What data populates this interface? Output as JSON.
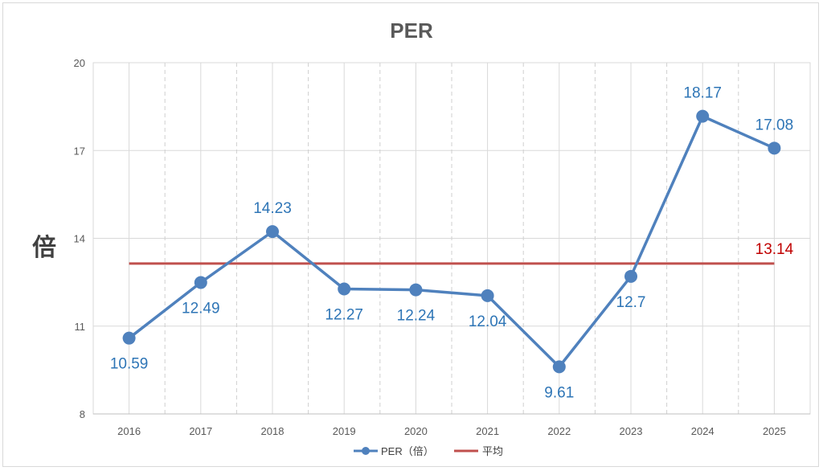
{
  "chart_data": {
    "type": "line",
    "title": "PER",
    "ylabel": "倍",
    "xlabel": "",
    "categories": [
      "2016",
      "2017",
      "2018",
      "2019",
      "2020",
      "2021",
      "2022",
      "2023",
      "2024",
      "2025"
    ],
    "ylim": [
      8,
      20
    ],
    "yticks": [
      8,
      11,
      14,
      17,
      20
    ],
    "grid": true,
    "legend_position": "bottom",
    "series": [
      {
        "name": "PER（倍）",
        "values": [
          10.59,
          12.49,
          14.23,
          12.27,
          12.24,
          12.04,
          9.61,
          12.7,
          18.17,
          17.08
        ],
        "labels": [
          "10.59",
          "12.49",
          "14.23",
          "12.27",
          "12.24",
          "12.04",
          "9.61",
          "12.7",
          "18.17",
          "17.08"
        ],
        "color": "#4f81bd",
        "label_color": "#2e75b6"
      },
      {
        "name": "平均",
        "value": 13.14,
        "label": "13.14",
        "color": "#c0504d",
        "label_color": "#c00000"
      }
    ]
  }
}
